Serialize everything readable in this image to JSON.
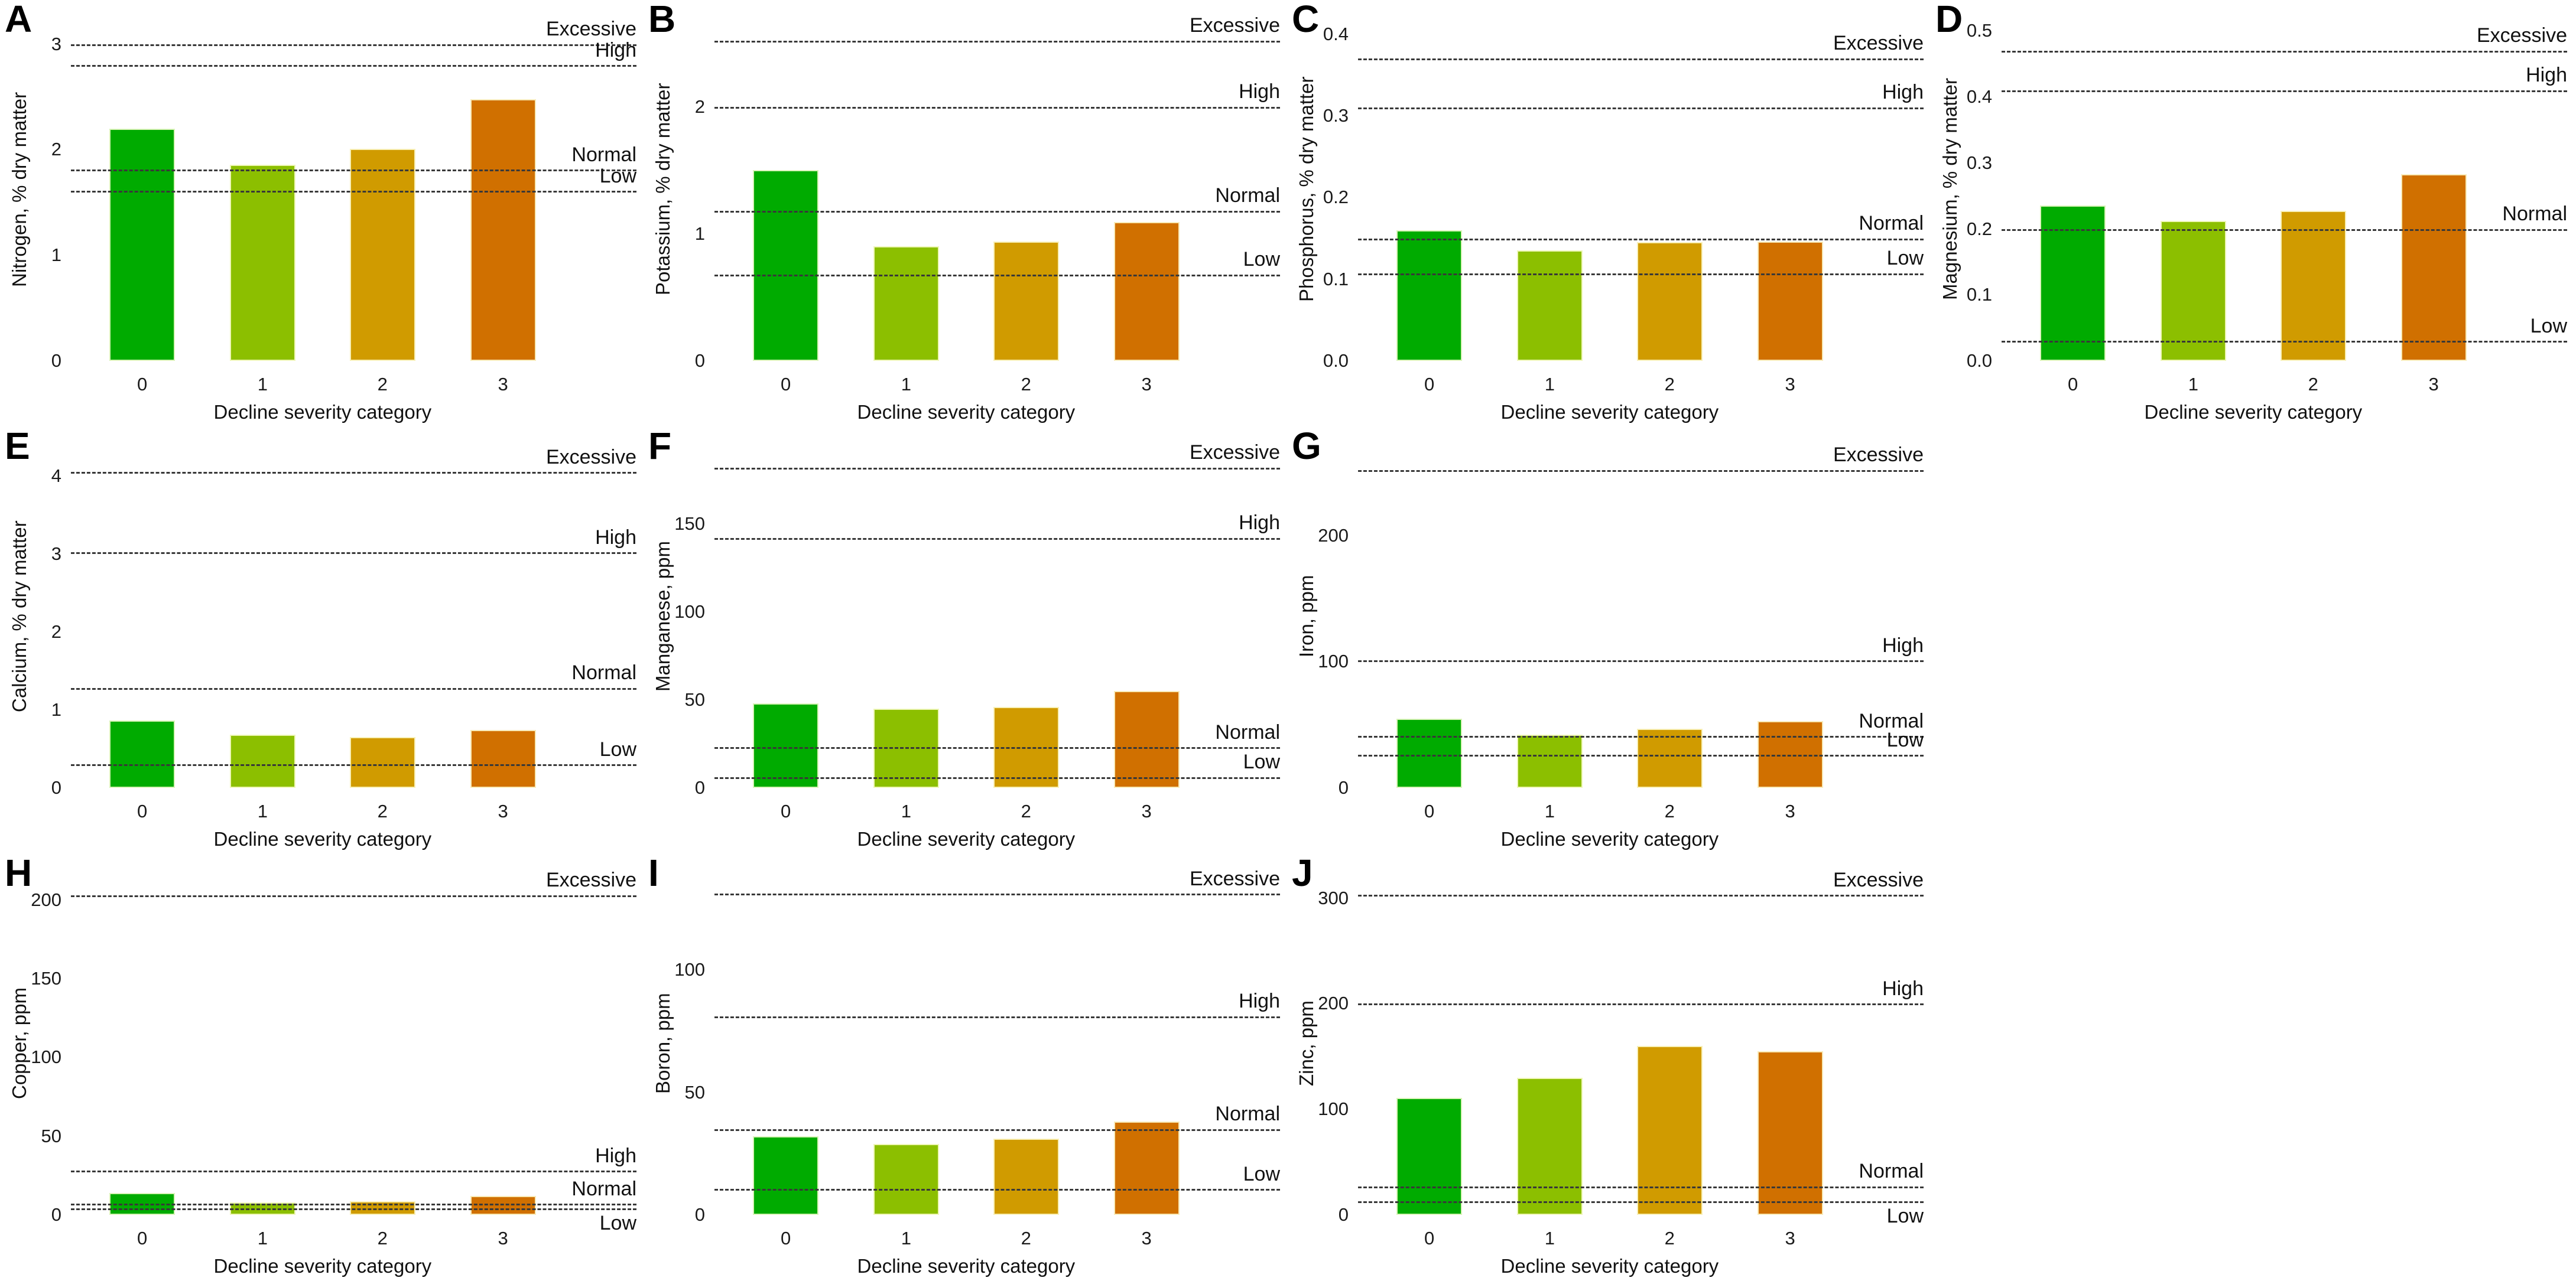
{
  "figure": {
    "x_axis_label": "Decline severity category",
    "categories": [
      "0",
      "1",
      "2",
      "3"
    ],
    "threshold_names": [
      "Excessive",
      "High",
      "Normal",
      "Low"
    ],
    "bar_colors": [
      "#00ab00",
      "#8cbf00",
      "#d09b00",
      "#d07000"
    ],
    "dashed_line_color": "#383838",
    "background_color": "#ffffff"
  },
  "chart_data": [
    {
      "panel": "A",
      "type": "bar",
      "ylabel": "Nitrogen, % dry matter",
      "xlabel": "Decline severity category",
      "categories": [
        "0",
        "1",
        "2",
        "3"
      ],
      "values": [
        2.2,
        1.86,
        2.01,
        2.48
      ],
      "ylim": [
        0,
        3.25
      ],
      "yticks": [
        0,
        1,
        2,
        3
      ],
      "ytick_labels": [
        "0",
        "1",
        "2",
        "3"
      ],
      "reference_lines": [
        {
          "label": "Excessive",
          "value": 3.0
        },
        {
          "label": "High",
          "value": 2.8
        },
        {
          "label": "Normal",
          "value": 1.81
        },
        {
          "label": "Low",
          "value": 1.61
        }
      ],
      "grid": {
        "row": 0,
        "col": 0
      }
    },
    {
      "panel": "B",
      "type": "bar",
      "ylabel": "Potassium, % dry matter",
      "xlabel": "Decline severity category",
      "categories": [
        "0",
        "1",
        "2",
        "3"
      ],
      "values": [
        1.5,
        0.9,
        0.94,
        1.09
      ],
      "ylim": [
        0,
        2.7
      ],
      "yticks": [
        0,
        1,
        2
      ],
      "ytick_labels": [
        "0",
        "1",
        "2"
      ],
      "reference_lines": [
        {
          "label": "Excessive",
          "value": 2.52
        },
        {
          "label": "High",
          "value": 2.0
        },
        {
          "label": "Normal",
          "value": 1.18
        },
        {
          "label": "Low",
          "value": 0.68
        }
      ],
      "grid": {
        "row": 0,
        "col": 1
      }
    },
    {
      "panel": "C",
      "type": "bar",
      "ylabel": "Phosphorus, % dry matter",
      "xlabel": "Decline severity category",
      "categories": [
        "0",
        "1",
        "2",
        "3"
      ],
      "values": [
        0.16,
        0.135,
        0.145,
        0.146
      ],
      "ylim": [
        0,
        0.42
      ],
      "yticks": [
        0,
        0.1,
        0.2,
        0.3,
        0.4
      ],
      "ytick_labels": [
        "0.0",
        "0.1",
        "0.2",
        "0.3",
        "0.4"
      ],
      "reference_lines": [
        {
          "label": "Excessive",
          "value": 0.37
        },
        {
          "label": "High",
          "value": 0.31
        },
        {
          "label": "Normal",
          "value": 0.15
        },
        {
          "label": "Low",
          "value": 0.107
        }
      ],
      "grid": {
        "row": 0,
        "col": 2
      }
    },
    {
      "panel": "D",
      "type": "bar",
      "ylabel": "Magnesium, % dry matter",
      "xlabel": "Decline severity category",
      "categories": [
        "0",
        "1",
        "2",
        "3"
      ],
      "values": [
        0.235,
        0.212,
        0.227,
        0.283
      ],
      "ylim": [
        0,
        0.52
      ],
      "yticks": [
        0,
        0.1,
        0.2,
        0.3,
        0.4,
        0.5
      ],
      "ytick_labels": [
        "0.0",
        "0.1",
        "0.2",
        "0.3",
        "0.4",
        "0.5"
      ],
      "reference_lines": [
        {
          "label": "Excessive",
          "value": 0.47
        },
        {
          "label": "High",
          "value": 0.41
        },
        {
          "label": "Normal",
          "value": 0.2
        },
        {
          "label": "Low",
          "value": 0.03
        }
      ],
      "grid": {
        "row": 0,
        "col": 3
      }
    },
    {
      "panel": "E",
      "type": "bar",
      "ylabel": "Calcium, % dry matter",
      "xlabel": "Decline severity category",
      "categories": [
        "0",
        "1",
        "2",
        "3"
      ],
      "values": [
        0.86,
        0.68,
        0.65,
        0.74
      ],
      "ylim": [
        0,
        4.4
      ],
      "yticks": [
        0,
        1,
        2,
        3,
        4
      ],
      "ytick_labels": [
        "0",
        "1",
        "2",
        "3",
        "4"
      ],
      "reference_lines": [
        {
          "label": "Excessive",
          "value": 4.05
        },
        {
          "label": "High",
          "value": 3.02
        },
        {
          "label": "Normal",
          "value": 1.28
        },
        {
          "label": "Low",
          "value": 0.3
        }
      ],
      "grid": {
        "row": 1,
        "col": 0
      }
    },
    {
      "panel": "F",
      "type": "bar",
      "ylabel": "Manganese, ppm",
      "xlabel": "Decline severity category",
      "categories": [
        "0",
        "1",
        "2",
        "3"
      ],
      "values": [
        48,
        45,
        46,
        55
      ],
      "ylim": [
        0,
        195
      ],
      "yticks": [
        0,
        50,
        100,
        150
      ],
      "ytick_labels": [
        "0",
        "50",
        "100",
        "150"
      ],
      "reference_lines": [
        {
          "label": "Excessive",
          "value": 182
        },
        {
          "label": "High",
          "value": 142
        },
        {
          "label": "Normal",
          "value": 23
        },
        {
          "label": "Low",
          "value": 6
        }
      ],
      "grid": {
        "row": 1,
        "col": 1
      }
    },
    {
      "panel": "G",
      "type": "bar",
      "ylabel": "Iron, ppm",
      "xlabel": "Decline severity category",
      "categories": [
        "0",
        "1",
        "2",
        "3"
      ],
      "values": [
        55,
        42,
        47,
        53
      ],
      "ylim": [
        0,
        272
      ],
      "yticks": [
        0,
        100,
        200
      ],
      "ytick_labels": [
        "0",
        "100",
        "200"
      ],
      "reference_lines": [
        {
          "label": "Excessive",
          "value": 252
        },
        {
          "label": "High",
          "value": 101
        },
        {
          "label": "Normal",
          "value": 41
        },
        {
          "label": "Low",
          "value": 26
        }
      ],
      "grid": {
        "row": 1,
        "col": 2
      }
    },
    {
      "panel": "H",
      "type": "bar",
      "ylabel": "Copper, ppm",
      "xlabel": "Decline severity category",
      "categories": [
        "0",
        "1",
        "2",
        "3"
      ],
      "values": [
        14,
        8,
        8.5,
        12
      ],
      "ylim": [
        0,
        218
      ],
      "yticks": [
        0,
        50,
        100,
        150,
        200
      ],
      "ytick_labels": [
        "0",
        "50",
        "100",
        "150",
        "200"
      ],
      "reference_lines": [
        {
          "label": "Excessive",
          "value": 203
        },
        {
          "label": "High",
          "value": 28
        },
        {
          "label": "Normal",
          "value": 7
        },
        {
          "label": "Low",
          "value": 4,
          "label_below": true
        }
      ],
      "grid": {
        "row": 2,
        "col": 0
      }
    },
    {
      "panel": "I",
      "type": "bar",
      "ylabel": "Boron, ppm",
      "xlabel": "Decline severity category",
      "categories": [
        "0",
        "1",
        "2",
        "3"
      ],
      "values": [
        32,
        29,
        31,
        38
      ],
      "ylim": [
        0,
        140
      ],
      "yticks": [
        0,
        50,
        100
      ],
      "ytick_labels": [
        "0",
        "50",
        "100"
      ],
      "reference_lines": [
        {
          "label": "Excessive",
          "value": 131
        },
        {
          "label": "High",
          "value": 81
        },
        {
          "label": "Normal",
          "value": 35
        },
        {
          "label": "Low",
          "value": 10.5
        }
      ],
      "grid": {
        "row": 2,
        "col": 1
      }
    },
    {
      "panel": "J",
      "type": "bar",
      "ylabel": "Zinc, ppm",
      "xlabel": "Decline severity category",
      "categories": [
        "0",
        "1",
        "2",
        "3"
      ],
      "values": [
        111,
        130,
        160,
        155
      ],
      "ylim": [
        0,
        325
      ],
      "yticks": [
        0,
        100,
        200,
        300
      ],
      "ytick_labels": [
        "0",
        "100",
        "200",
        "300"
      ],
      "reference_lines": [
        {
          "label": "Excessive",
          "value": 303
        },
        {
          "label": "High",
          "value": 200
        },
        {
          "label": "Normal",
          "value": 27
        },
        {
          "label": "Low",
          "value": 13,
          "label_below": true
        }
      ],
      "grid": {
        "row": 2,
        "col": 2
      }
    }
  ]
}
